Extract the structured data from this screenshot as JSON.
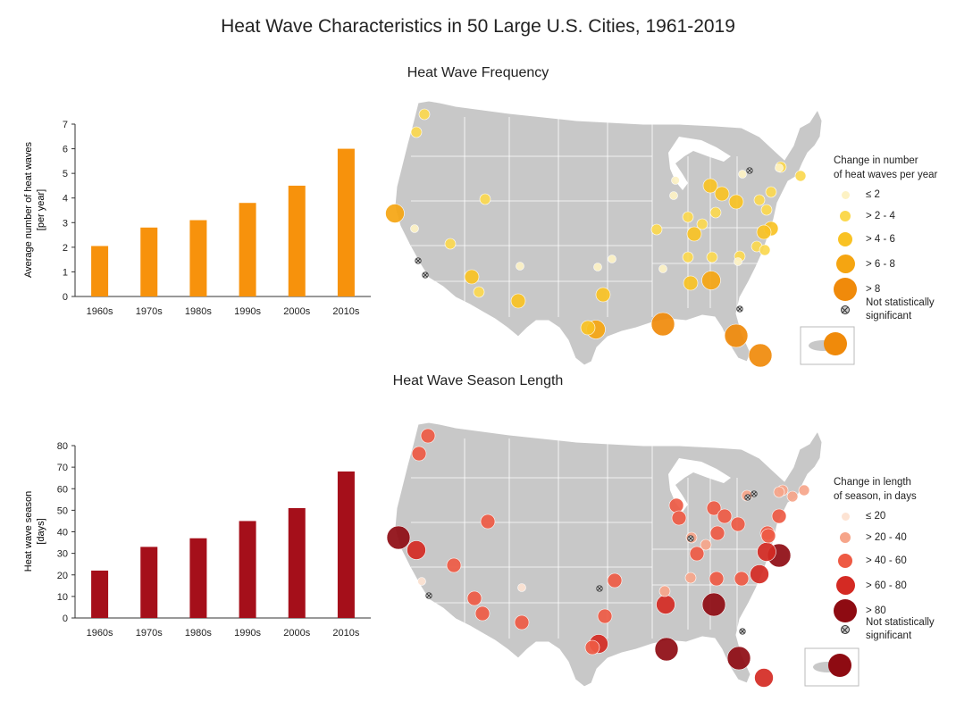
{
  "title": "Heat Wave Characteristics in 50 Large U.S. Cities, 1961-2019",
  "colors": {
    "frequency_bar": "#f7920c",
    "season_bar": "#a50f1a",
    "map_land": "#c8c8c8",
    "map_border": "#ffffff"
  },
  "chart_data": [
    {
      "type": "bar",
      "title": "",
      "categories": [
        "1960s",
        "1970s",
        "1980s",
        "1990s",
        "2000s",
        "2010s"
      ],
      "values": [
        2.05,
        2.8,
        3.1,
        3.8,
        4.5,
        6.0
      ],
      "xlabel": "",
      "ylabel_line1": "Average number of heat waves",
      "ylabel_line2": "[per year]",
      "ylim": [
        0,
        7
      ],
      "yticks": [
        "0",
        "1",
        "2",
        "3",
        "4",
        "5",
        "6",
        "7"
      ],
      "grid": false
    },
    {
      "type": "bar",
      "title": "",
      "categories": [
        "1960s",
        "1970s",
        "1980s",
        "1990s",
        "2000s",
        "2010s"
      ],
      "values": [
        22,
        33,
        37,
        45,
        51,
        68
      ],
      "xlabel": "",
      "ylabel_line1": "Heat wave season",
      "ylabel_line2": "[days]",
      "ylim": [
        0,
        80
      ],
      "yticks": [
        "0",
        "10",
        "20",
        "30",
        "40",
        "50",
        "60",
        "70",
        "80"
      ],
      "grid": false
    }
  ],
  "maps": {
    "frequency": {
      "title": "Heat Wave Frequency",
      "legend_title_line1": "Change in number",
      "legend_title_line2": "of heat waves per year",
      "legend": [
        {
          "label": "≤  2",
          "color": "#fdf2c4",
          "level": 1
        },
        {
          "label": ">  2 - 4",
          "color": "#fbd84f",
          "level": 2
        },
        {
          "label": "> 4 - 6",
          "color": "#f9c224",
          "level": 3
        },
        {
          "label": "> 6 - 8",
          "color": "#f5a511",
          "level": 4
        },
        {
          "label": "> 8",
          "color": "#f08a0a",
          "level": 5
        }
      ],
      "ns_line1": "Not statistically",
      "ns_line2": "significant"
    },
    "season": {
      "title": "Heat Wave Season Length",
      "legend_title_line1": "Change in length",
      "legend_title_line2": "of season, in days",
      "legend": [
        {
          "label": "≤ 20",
          "color": "#fde3d3",
          "level": 1
        },
        {
          "label": "> 20 - 40",
          "color": "#f6a58a",
          "level": 2
        },
        {
          "label": "> 40 - 60",
          "color": "#ee5a44",
          "level": 3
        },
        {
          "label": "> 60 - 80",
          "color": "#d42a23",
          "level": 4
        },
        {
          "label": "> 80",
          "color": "#8e0b12",
          "level": 5
        }
      ],
      "ns_line1": "Not statistically",
      "ns_line2": "significant"
    }
  }
}
